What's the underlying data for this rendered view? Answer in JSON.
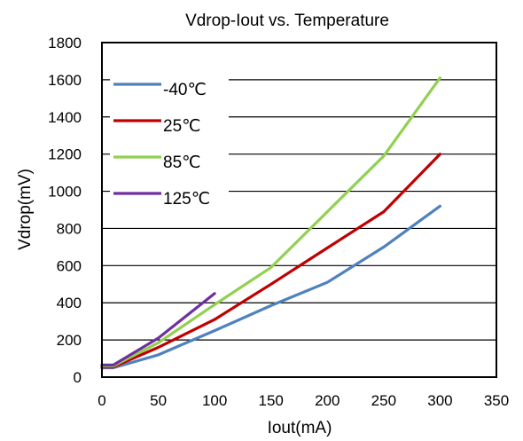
{
  "chart_data": {
    "type": "line",
    "title": "Vdrop-Iout vs. Temperature",
    "xlabel": "Iout(mA)",
    "ylabel": "Vdrop(mV)",
    "xlim": [
      0,
      350
    ],
    "ylim": [
      0,
      1800
    ],
    "xticks": [
      0,
      50,
      100,
      150,
      200,
      250,
      300,
      350
    ],
    "yticks": [
      0,
      200,
      400,
      600,
      800,
      1000,
      1200,
      1400,
      1600,
      1800
    ],
    "grid": "horizontal",
    "legend_position": "top-left",
    "series": [
      {
        "name": "-40℃",
        "color": "#4F81BD",
        "x": [
          0,
          10,
          50,
          100,
          150,
          200,
          250,
          300
        ],
        "y": [
          50,
          50,
          120,
          250,
          385,
          510,
          700,
          920
        ]
      },
      {
        "name": "25℃",
        "color": "#C00000",
        "x": [
          0,
          10,
          50,
          100,
          150,
          200,
          250,
          300
        ],
        "y": [
          55,
          55,
          160,
          310,
          500,
          695,
          890,
          1200
        ]
      },
      {
        "name": "85℃",
        "color": "#92D050",
        "x": [
          0,
          10,
          50,
          100,
          150,
          200,
          250,
          300
        ],
        "y": [
          60,
          60,
          185,
          390,
          590,
          890,
          1190,
          1610
        ]
      },
      {
        "name": "125℃",
        "color": "#7030A0",
        "x": [
          0,
          10,
          50,
          100
        ],
        "y": [
          65,
          65,
          210,
          450
        ]
      }
    ]
  }
}
